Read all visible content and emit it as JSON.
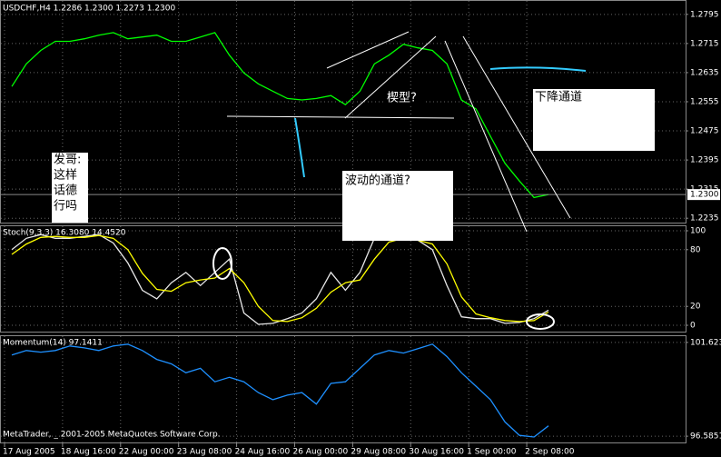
{
  "chart_data": [
    {
      "type": "line",
      "title": "USDCHF,H4  1.2286 1.2300 1.2273 1.2300",
      "x": [
        1,
        3,
        5,
        7,
        9,
        11,
        13,
        15,
        17,
        19,
        21,
        23,
        25,
        27,
        29,
        31,
        33,
        35,
        37,
        39,
        41,
        43,
        45,
        47,
        49,
        51,
        53,
        55,
        57,
        59,
        61,
        63,
        65,
        67,
        69,
        71,
        73,
        75
      ],
      "series": [
        {
          "name": "USDCHF",
          "color": "#00ff00",
          "values": [
            1.2597,
            1.2659,
            1.2696,
            1.2721,
            1.2721,
            1.2728,
            1.2738,
            1.2745,
            1.2728,
            1.2733,
            1.2738,
            1.2721,
            1.2721,
            1.2733,
            1.2745,
            1.2683,
            1.2634,
            1.2604,
            1.2584,
            1.2564,
            1.256,
            1.2564,
            1.2572,
            1.2547,
            1.2584,
            1.2659,
            1.2683,
            1.2713,
            1.2703,
            1.2696,
            1.2659,
            1.256,
            1.2535,
            1.246,
            1.2386,
            1.2337,
            1.2292,
            1.23
          ]
        }
      ],
      "xlim": [
        -0.5,
        93.9
      ],
      "ylim": [
        1.2223,
        1.2832
      ],
      "yticks": [
        1.2795,
        1.2715,
        1.2635,
        1.2555,
        1.2475,
        1.2395,
        1.2315,
        1.2235
      ],
      "current_price": {
        "value": 1.23,
        "label": "1.2300"
      },
      "note_lines": [
        "发哥:",
        "这样",
        "话德",
        "行吗"
      ],
      "annotations": [
        "波动的通道?",
        "下降通道",
        "楔型?"
      ],
      "grid": true
    },
    {
      "type": "line",
      "title": "Stoch(9,3,3) 16.3080 14.4520",
      "x": [
        1,
        3,
        5,
        7,
        9,
        11,
        13,
        15,
        17,
        19,
        21,
        23,
        25,
        27,
        29,
        31,
        33,
        35,
        37,
        39,
        41,
        43,
        45,
        47,
        49,
        51,
        53,
        55,
        57,
        59,
        61,
        63,
        65,
        67,
        69,
        71,
        73,
        75
      ],
      "series": [
        {
          "name": "Main",
          "color": "#e8e8e8",
          "values": [
            80,
            92,
            96,
            92,
            92,
            94,
            96,
            87,
            66,
            37,
            28,
            45,
            56,
            42,
            56,
            70,
            13,
            1,
            2,
            7,
            13,
            28,
            56,
            37,
            56,
            92,
            92,
            90,
            90,
            80,
            42,
            9,
            7,
            7,
            2,
            3,
            7,
            16
          ]
        },
        {
          "name": "Signal",
          "color": "#ffff00",
          "values": [
            75,
            86,
            93,
            94,
            93,
            93,
            95,
            92,
            80,
            55,
            38,
            36,
            45,
            48,
            50,
            60,
            45,
            20,
            5,
            4,
            8,
            18,
            35,
            45,
            48,
            70,
            88,
            92,
            90,
            86,
            65,
            30,
            12,
            8,
            5,
            4,
            5,
            14
          ]
        }
      ],
      "xlim": [
        -0.5,
        93.9
      ],
      "ylim": [
        -6.7,
        104.8
      ],
      "yticks": [
        100,
        80,
        20,
        0
      ],
      "grid": true
    },
    {
      "type": "line",
      "title": "Momentum(14) 97.1411",
      "x": [
        1,
        3,
        5,
        7,
        9,
        11,
        13,
        15,
        17,
        19,
        21,
        23,
        25,
        27,
        29,
        31,
        33,
        35,
        37,
        39,
        41,
        43,
        45,
        47,
        49,
        51,
        53,
        55,
        57,
        59,
        61,
        63,
        65,
        67,
        69,
        71,
        73,
        75
      ],
      "series": [
        {
          "name": "Momentum",
          "color": "#1e90ff",
          "values": [
            100.95,
            101.19,
            101.1,
            101.19,
            101.43,
            101.33,
            101.19,
            101.43,
            101.53,
            101.19,
            100.71,
            100.47,
            99.99,
            100.23,
            99.51,
            99.75,
            99.51,
            98.93,
            98.55,
            98.79,
            98.93,
            98.31,
            99.42,
            99.51,
            100.23,
            100.95,
            101.19,
            101.05,
            101.29,
            101.53,
            100.86,
            99.99,
            99.27,
            98.55,
            97.35,
            96.63,
            96.54,
            97.14
          ]
        }
      ],
      "xlim": [
        -0.5,
        93.9
      ],
      "ylim": [
        96.249,
        101.959
      ],
      "yticks": [
        101.623,
        96.5851
      ],
      "xticks": [
        {
          "value": 0,
          "label": "17 Aug 2005"
        },
        {
          "value": 8,
          "label": "18 Aug 16:00"
        },
        {
          "value": 16,
          "label": "22 Aug 00:00"
        },
        {
          "value": 24,
          "label": "23 Aug 08:00"
        },
        {
          "value": 32,
          "label": "24 Aug 16:00"
        },
        {
          "value": 40,
          "label": "26 Aug 00:00"
        },
        {
          "value": 48,
          "label": "29 Aug 08:00"
        },
        {
          "value": 56,
          "label": "30 Aug 16:00"
        },
        {
          "value": 64,
          "label": "1 Sep 00:00"
        },
        {
          "value": 72,
          "label": "2 Sep 08:00"
        }
      ],
      "footer": "MetaTrader, _ 2001-2005 MetaQuotes Software Corp.",
      "grid": true
    }
  ]
}
